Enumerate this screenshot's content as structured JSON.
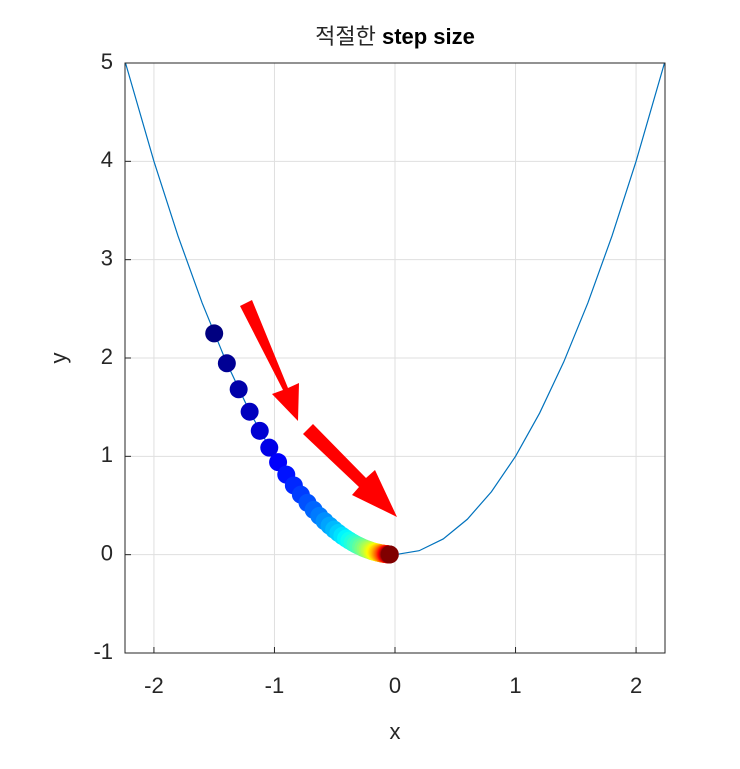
{
  "chart_data": {
    "type": "line",
    "title": [
      "적절한",
      "step size"
    ],
    "xlabel": "x",
    "ylabel": "y",
    "xlim": [
      -2.24,
      2.24
    ],
    "ylim": [
      -1,
      5
    ],
    "xticks": [
      -2,
      -1,
      0,
      1,
      2
    ],
    "yticks": [
      -1,
      0,
      1,
      2,
      3,
      4,
      5
    ],
    "grid": true,
    "colormap": "jet",
    "series": [
      {
        "type": "line",
        "color": "#0072bd",
        "x": [
          -2.24,
          -2,
          -1.8,
          -1.6,
          -1.4,
          -1.2,
          -1,
          -0.8,
          -0.6,
          -0.4,
          -0.2,
          0,
          0.2,
          0.4,
          0.6,
          0.8,
          1,
          1.2,
          1.4,
          1.6,
          1.8,
          2,
          2.24
        ],
        "values": [
          5.018,
          4,
          3.24,
          2.56,
          1.96,
          1.44,
          1,
          0.64,
          0.36,
          0.16,
          0.04,
          0,
          0.04,
          0.16,
          0.36,
          0.64,
          1,
          1.44,
          1.96,
          2.56,
          3.24,
          4,
          5.018
        ]
      },
      {
        "type": "scatter",
        "x": [
          -1.5,
          -1.395,
          -1.297,
          -1.206,
          -1.122,
          -1.043,
          -0.97,
          -0.902,
          -0.839,
          -0.781,
          -0.726,
          -0.675,
          -0.628,
          -0.584,
          -0.543,
          -0.505,
          -0.47,
          -0.437,
          -0.406,
          -0.378,
          -0.351,
          -0.327,
          -0.304,
          -0.282,
          -0.263,
          -0.244,
          -0.227,
          -0.211,
          -0.196,
          -0.183,
          -0.17,
          -0.158,
          -0.147,
          -0.137,
          -0.127,
          -0.118,
          -0.11,
          -0.102,
          -0.095,
          -0.088,
          -0.082,
          -0.076,
          -0.071,
          -0.066,
          -0.061,
          -0.057,
          -0.053,
          -0.049,
          -0.046,
          -0.043
        ],
        "values": [
          2.25,
          1.946,
          1.682,
          1.454,
          1.259,
          1.088,
          0.941,
          0.814,
          0.704,
          0.61,
          0.527,
          0.456,
          0.394,
          0.341,
          0.295,
          0.255,
          0.221,
          0.191,
          0.165,
          0.143,
          0.123,
          0.107,
          0.092,
          0.08,
          0.069,
          0.06,
          0.052,
          0.045,
          0.038,
          0.033,
          0.029,
          0.025,
          0.022,
          0.019,
          0.016,
          0.014,
          0.012,
          0.01,
          0.009,
          0.008,
          0.007,
          0.006,
          0.005,
          0.004,
          0.004,
          0.003,
          0.003,
          0.002,
          0.002,
          0.002
        ]
      }
    ]
  }
}
